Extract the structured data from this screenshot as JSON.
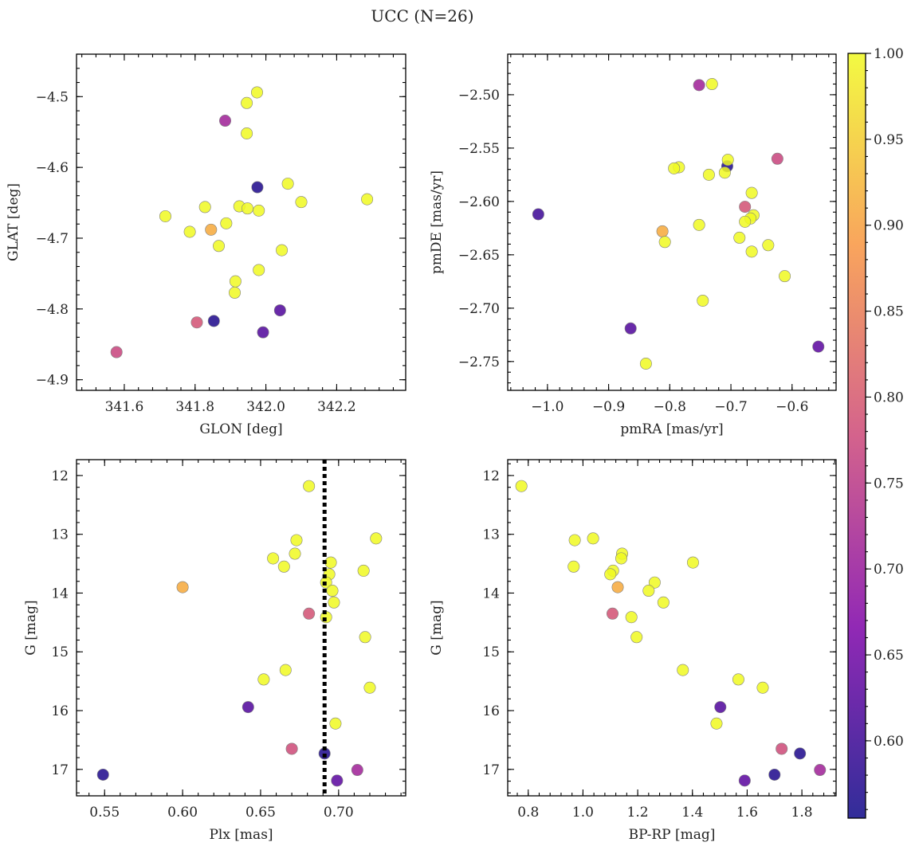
{
  "chart_data": {
    "type": "scatter",
    "title": "UCC (N=26)",
    "colorbar": {
      "cmap": "plasma",
      "range": [
        0.555,
        1.0
      ],
      "ticks": [
        0.6,
        0.65,
        0.7,
        0.75,
        0.8,
        0.85,
        0.9,
        0.95,
        1.0
      ],
      "tick_labels": [
        "0.60",
        "0.65",
        "0.70",
        "0.75",
        "0.80",
        "0.85",
        "0.90",
        "0.95",
        "1.00"
      ]
    },
    "panels": [
      {
        "id": "glon-glat",
        "xlabel": "GLON [deg]",
        "ylabel": "GLAT [deg]",
        "xlim": [
          341.465,
          342.395
        ],
        "ylim": [
          -4.915,
          -4.44
        ],
        "y_inverted": false,
        "xticks": [
          341.6,
          341.8,
          342.0,
          342.2
        ],
        "xtick_labels": [
          "341.6",
          "341.8",
          "342.0",
          "342.2"
        ],
        "yticks": [
          -4.5,
          -4.6,
          -4.7,
          -4.8,
          -4.9
        ],
        "ytick_labels": [
          "−4.5",
          "−4.6",
          "−4.7",
          "−4.8",
          "−4.9"
        ],
        "points": [
          {
            "x": 341.975,
            "y": -4.494,
            "c": 1.0
          },
          {
            "x": 341.946,
            "y": -4.509,
            "c": 1.0
          },
          {
            "x": 341.885,
            "y": -4.534,
            "c": 0.71
          },
          {
            "x": 341.946,
            "y": -4.552,
            "c": 1.0
          },
          {
            "x": 341.976,
            "y": -4.628,
            "c": 0.57
          },
          {
            "x": 342.062,
            "y": -4.623,
            "c": 1.0
          },
          {
            "x": 342.286,
            "y": -4.645,
            "c": 1.0
          },
          {
            "x": 342.1,
            "y": -4.649,
            "c": 1.0
          },
          {
            "x": 341.925,
            "y": -4.655,
            "c": 1.0
          },
          {
            "x": 341.948,
            "y": -4.658,
            "c": 1.0
          },
          {
            "x": 341.98,
            "y": -4.661,
            "c": 1.0
          },
          {
            "x": 341.828,
            "y": -4.656,
            "c": 1.0
          },
          {
            "x": 341.716,
            "y": -4.669,
            "c": 1.0
          },
          {
            "x": 341.888,
            "y": -4.679,
            "c": 1.0
          },
          {
            "x": 341.845,
            "y": -4.688,
            "c": 0.91
          },
          {
            "x": 341.785,
            "y": -4.691,
            "c": 1.0
          },
          {
            "x": 341.867,
            "y": -4.711,
            "c": 1.0
          },
          {
            "x": 342.045,
            "y": -4.717,
            "c": 1.0
          },
          {
            "x": 341.98,
            "y": -4.745,
            "c": 1.0
          },
          {
            "x": 341.914,
            "y": -4.761,
            "c": 1.0
          },
          {
            "x": 341.912,
            "y": -4.777,
            "c": 1.0
          },
          {
            "x": 342.04,
            "y": -4.802,
            "c": 0.62
          },
          {
            "x": 341.853,
            "y": -4.817,
            "c": 0.57
          },
          {
            "x": 341.805,
            "y": -4.819,
            "c": 0.79
          },
          {
            "x": 341.992,
            "y": -4.833,
            "c": 0.62
          },
          {
            "x": 341.578,
            "y": -4.861,
            "c": 0.77
          }
        ]
      },
      {
        "id": "pmra-pmde",
        "xlabel": "pmRA [mas/yr]",
        "ylabel": "pmDE [mas/yr]",
        "xlim": [
          -1.065,
          -0.528
        ],
        "ylim": [
          -2.777,
          -2.462
        ],
        "y_inverted": false,
        "xticks": [
          -1.0,
          -0.9,
          -0.8,
          -0.7,
          -0.6
        ],
        "xtick_labels": [
          "−1.0",
          "−0.9",
          "−0.8",
          "−0.7",
          "−0.6"
        ],
        "yticks": [
          -2.5,
          -2.55,
          -2.6,
          -2.65,
          -2.7,
          -2.75
        ],
        "ytick_labels": [
          "−2.50",
          "−2.55",
          "−2.60",
          "−2.65",
          "−2.70",
          "−2.75"
        ],
        "points": [
          {
            "x": -0.752,
            "y": -2.491,
            "c": 0.71
          },
          {
            "x": -0.731,
            "y": -2.49,
            "c": 1.0
          },
          {
            "x": -0.706,
            "y": -2.567,
            "c": 0.57
          },
          {
            "x": -0.705,
            "y": -2.561,
            "c": 1.0
          },
          {
            "x": -0.624,
            "y": -2.56,
            "c": 0.77
          },
          {
            "x": -0.785,
            "y": -2.568,
            "c": 1.0
          },
          {
            "x": -0.793,
            "y": -2.569,
            "c": 1.0
          },
          {
            "x": -0.71,
            "y": -2.573,
            "c": 1.0
          },
          {
            "x": -0.736,
            "y": -2.575,
            "c": 1.0
          },
          {
            "x": -0.666,
            "y": -2.592,
            "c": 1.0
          },
          {
            "x": -1.015,
            "y": -2.612,
            "c": 0.6
          },
          {
            "x": -0.677,
            "y": -2.605,
            "c": 0.79
          },
          {
            "x": -0.663,
            "y": -2.613,
            "c": 1.0
          },
          {
            "x": -0.668,
            "y": -2.616,
            "c": 1.0
          },
          {
            "x": -0.677,
            "y": -2.619,
            "c": 1.0
          },
          {
            "x": -0.752,
            "y": -2.622,
            "c": 1.0
          },
          {
            "x": -0.812,
            "y": -2.628,
            "c": 0.91
          },
          {
            "x": -0.808,
            "y": -2.638,
            "c": 1.0
          },
          {
            "x": -0.686,
            "y": -2.634,
            "c": 1.0
          },
          {
            "x": -0.639,
            "y": -2.641,
            "c": 1.0
          },
          {
            "x": -0.666,
            "y": -2.647,
            "c": 1.0
          },
          {
            "x": -0.612,
            "y": -2.67,
            "c": 1.0
          },
          {
            "x": -0.746,
            "y": -2.693,
            "c": 1.0
          },
          {
            "x": -0.864,
            "y": -2.719,
            "c": 0.62
          },
          {
            "x": -0.557,
            "y": -2.736,
            "c": 0.63
          },
          {
            "x": -0.839,
            "y": -2.752,
            "c": 1.0
          }
        ]
      },
      {
        "id": "plx-g",
        "xlabel": "Plx [mas]",
        "ylabel": "G [mag]",
        "xlim": [
          0.532,
          0.743
        ],
        "ylim": [
          11.73,
          17.45
        ],
        "y_inverted": true,
        "vline": 0.691,
        "xticks": [
          0.55,
          0.6,
          0.65,
          0.7
        ],
        "xtick_labels": [
          "0.55",
          "0.60",
          "0.65",
          "0.70"
        ],
        "yticks": [
          12,
          13,
          14,
          15,
          16,
          17
        ],
        "ytick_labels": [
          "12",
          "13",
          "14",
          "15",
          "16",
          "17"
        ],
        "points": [
          {
            "x": 0.681,
            "y": 12.18,
            "c": 1.0
          },
          {
            "x": 0.724,
            "y": 13.07,
            "c": 1.0
          },
          {
            "x": 0.673,
            "y": 13.1,
            "c": 1.0
          },
          {
            "x": 0.672,
            "y": 13.33,
            "c": 1.0
          },
          {
            "x": 0.658,
            "y": 13.41,
            "c": 1.0
          },
          {
            "x": 0.695,
            "y": 13.48,
            "c": 1.0
          },
          {
            "x": 0.665,
            "y": 13.55,
            "c": 1.0
          },
          {
            "x": 0.716,
            "y": 13.62,
            "c": 1.0
          },
          {
            "x": 0.694,
            "y": 13.68,
            "c": 1.0
          },
          {
            "x": 0.692,
            "y": 13.82,
            "c": 1.0
          },
          {
            "x": 0.6,
            "y": 13.9,
            "c": 0.91
          },
          {
            "x": 0.696,
            "y": 13.96,
            "c": 1.0
          },
          {
            "x": 0.697,
            "y": 14.16,
            "c": 1.0
          },
          {
            "x": 0.681,
            "y": 14.35,
            "c": 0.79
          },
          {
            "x": 0.692,
            "y": 14.41,
            "c": 1.0
          },
          {
            "x": 0.717,
            "y": 14.75,
            "c": 1.0
          },
          {
            "x": 0.666,
            "y": 15.31,
            "c": 1.0
          },
          {
            "x": 0.652,
            "y": 15.47,
            "c": 1.0
          },
          {
            "x": 0.72,
            "y": 15.61,
            "c": 1.0
          },
          {
            "x": 0.642,
            "y": 15.94,
            "c": 0.62
          },
          {
            "x": 0.698,
            "y": 16.22,
            "c": 1.0
          },
          {
            "x": 0.67,
            "y": 16.65,
            "c": 0.78
          },
          {
            "x": 0.691,
            "y": 16.73,
            "c": 0.57
          },
          {
            "x": 0.712,
            "y": 17.01,
            "c": 0.71
          },
          {
            "x": 0.549,
            "y": 17.09,
            "c": 0.57
          },
          {
            "x": 0.699,
            "y": 17.19,
            "c": 0.63
          }
        ]
      },
      {
        "id": "bprp-g",
        "xlabel": "BP-RP [mag]",
        "ylabel": "G [mag]",
        "xlim": [
          0.725,
          1.925
        ],
        "ylim": [
          11.73,
          17.45
        ],
        "y_inverted": true,
        "xticks": [
          0.8,
          1.0,
          1.2,
          1.4,
          1.6,
          1.8
        ],
        "xtick_labels": [
          "0.8",
          "1.0",
          "1.2",
          "1.4",
          "1.6",
          "1.8"
        ],
        "yticks": [
          12,
          13,
          14,
          15,
          16,
          17
        ],
        "ytick_labels": [
          "12",
          "13",
          "14",
          "15",
          "16",
          "17"
        ],
        "points": [
          {
            "x": 0.775,
            "y": 12.18,
            "c": 1.0
          },
          {
            "x": 1.037,
            "y": 13.07,
            "c": 1.0
          },
          {
            "x": 0.97,
            "y": 13.1,
            "c": 1.0
          },
          {
            "x": 1.143,
            "y": 13.33,
            "c": 1.0
          },
          {
            "x": 1.14,
            "y": 13.41,
            "c": 1.0
          },
          {
            "x": 1.402,
            "y": 13.48,
            "c": 1.0
          },
          {
            "x": 0.966,
            "y": 13.55,
            "c": 1.0
          },
          {
            "x": 1.11,
            "y": 13.62,
            "c": 1.0
          },
          {
            "x": 1.1,
            "y": 13.68,
            "c": 1.0
          },
          {
            "x": 1.262,
            "y": 13.82,
            "c": 1.0
          },
          {
            "x": 1.127,
            "y": 13.9,
            "c": 0.91
          },
          {
            "x": 1.24,
            "y": 13.96,
            "c": 1.0
          },
          {
            "x": 1.294,
            "y": 14.16,
            "c": 1.0
          },
          {
            "x": 1.108,
            "y": 14.35,
            "c": 0.79
          },
          {
            "x": 1.177,
            "y": 14.41,
            "c": 1.0
          },
          {
            "x": 1.196,
            "y": 14.75,
            "c": 1.0
          },
          {
            "x": 1.365,
            "y": 15.31,
            "c": 1.0
          },
          {
            "x": 1.568,
            "y": 15.47,
            "c": 1.0
          },
          {
            "x": 1.657,
            "y": 15.61,
            "c": 1.0
          },
          {
            "x": 1.502,
            "y": 15.94,
            "c": 0.62
          },
          {
            "x": 1.488,
            "y": 16.22,
            "c": 1.0
          },
          {
            "x": 1.726,
            "y": 16.65,
            "c": 0.78
          },
          {
            "x": 1.793,
            "y": 16.73,
            "c": 0.57
          },
          {
            "x": 1.866,
            "y": 17.01,
            "c": 0.71
          },
          {
            "x": 1.7,
            "y": 17.09,
            "c": 0.57
          },
          {
            "x": 1.591,
            "y": 17.19,
            "c": 0.63
          }
        ]
      }
    ]
  }
}
